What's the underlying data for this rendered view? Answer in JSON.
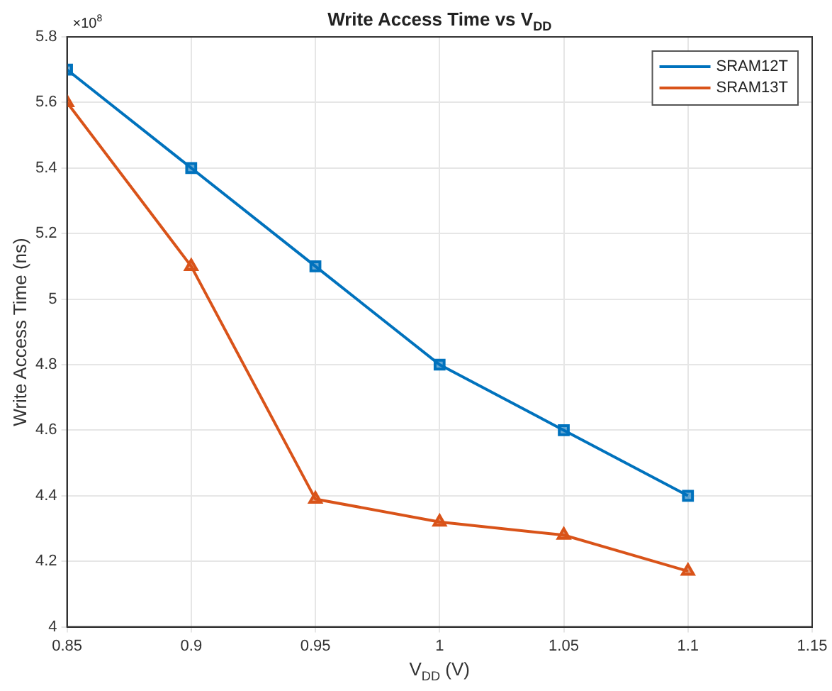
{
  "chart_data": {
    "type": "line",
    "title": "Write Access Time vs V$_{DD}$",
    "xlabel": "V$_{DD}$ (V)",
    "ylabel": "Write Access Time (ns)",
    "annotations": [
      "×10$^{8}$"
    ],
    "x": [
      0.85,
      0.9,
      0.95,
      1,
      1.05,
      1.1
    ],
    "series": [
      {
        "name": "SRAM12T",
        "color": "#0072bd",
        "marker": "square",
        "values": [
          5.7,
          5.4,
          5.1,
          4.8,
          4.6,
          4.4
        ]
      },
      {
        "name": "SRAM13T",
        "color": "#d95319",
        "marker": "triangle",
        "values": [
          5.6,
          5.1,
          4.39,
          4.32,
          4.28,
          4.17
        ]
      }
    ],
    "xlim": [
      0.85,
      1.15
    ],
    "xticks": [
      0.85,
      0.9,
      0.95,
      1,
      1.05,
      1.1,
      1.15
    ],
    "ylim": [
      4,
      5.8
    ],
    "yticks": [
      4,
      4.2,
      4.4,
      4.6,
      4.8,
      5,
      5.2,
      5.4,
      5.6,
      5.8
    ],
    "grid": true,
    "legend": "top right",
    "line_style": "solid"
  }
}
